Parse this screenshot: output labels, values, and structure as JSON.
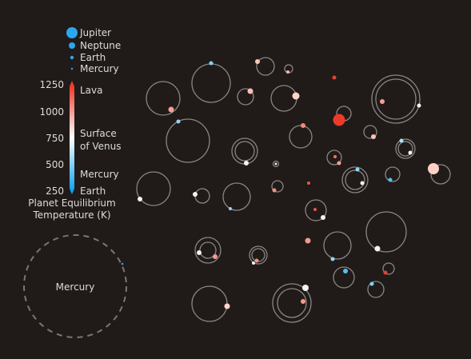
{
  "legend": {
    "sizes": [
      {
        "label": "Jupiter",
        "color": "#2ba7f0"
      },
      {
        "label": "Neptune",
        "color": "#2ba7f0"
      },
      {
        "label": "Earth",
        "color": "#2ba7f0"
      },
      {
        "label": "Mercury",
        "color": "#2ba7f0"
      }
    ],
    "scale_ticks": [
      "1250",
      "1000",
      "750",
      "500",
      "250"
    ],
    "scale_labels": {
      "lava": "Lava",
      "venus_line1": "Surface",
      "venus_line2": "of Venus",
      "mercury": "Mercury",
      "earth": "Earth"
    },
    "scale_title_line1": "Planet Equilibrium",
    "scale_title_line2": "Temperature (K)",
    "colors": {
      "hot": "#ee3a2a",
      "mid": "#ffffff",
      "cold": "#17a6ef"
    }
  },
  "reference_orbit_label": "Mercury"
}
